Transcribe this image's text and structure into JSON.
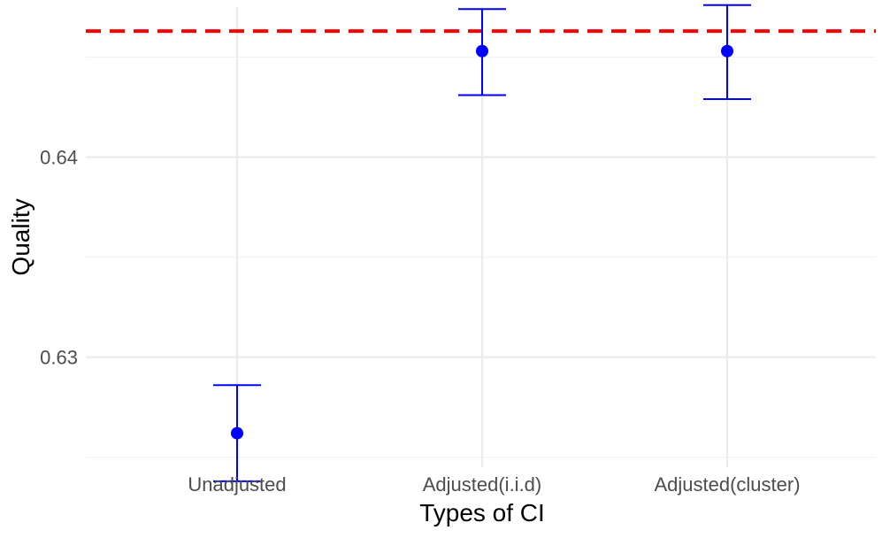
{
  "chart_data": {
    "type": "scatter",
    "subtype": "point-with-error-bars",
    "title": "",
    "xlabel": "Types of CI",
    "ylabel": "Quality",
    "categories": [
      "Unadjusted",
      "Adjusted(i.i.d)",
      "Adjusted(cluster)"
    ],
    "series": [
      {
        "estimates": [
          0.6262,
          0.6453,
          0.6453
        ],
        "lower": [
          0.6238,
          0.6431,
          0.6429
        ],
        "upper": [
          0.6286,
          0.6474,
          0.6476
        ],
        "color": "#0000ff"
      }
    ],
    "reference_line": {
      "value": 0.6463,
      "color": "#ff0000",
      "style": "dashed"
    },
    "ylim": [
      0.6245,
      0.6475
    ],
    "y_ticks": [
      0.63,
      0.64
    ],
    "y_tick_labels": [
      "0.63",
      "0.64"
    ],
    "grid": true,
    "legend": "none",
    "theme": "minimal"
  }
}
